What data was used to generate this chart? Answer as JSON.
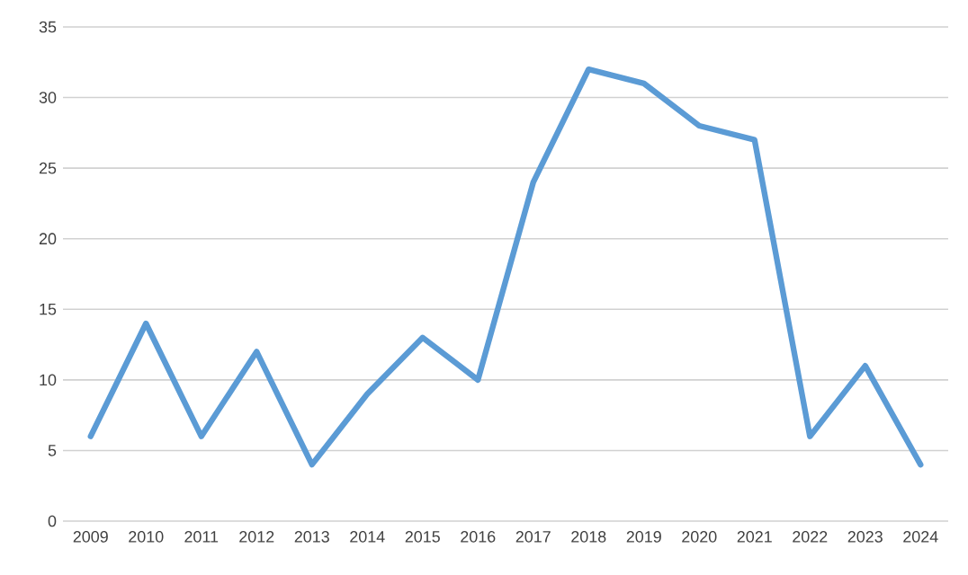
{
  "chart_data": {
    "type": "line",
    "categories": [
      "2009",
      "2010",
      "2011",
      "2012",
      "2013",
      "2014",
      "2015",
      "2016",
      "2017",
      "2018",
      "2019",
      "2020",
      "2021",
      "2022",
      "2023",
      "2024"
    ],
    "series": [
      {
        "color": "#5b9bd5",
        "values": [
          6,
          14,
          6,
          12,
          4,
          9,
          13,
          10,
          24,
          32,
          31,
          28,
          27,
          6,
          11,
          4
        ]
      }
    ],
    "ylim": [
      0,
      35
    ],
    "yticks": [
      0,
      5,
      10,
      15,
      20,
      25,
      30,
      35
    ],
    "grid": "y",
    "legend": false,
    "marker": "none",
    "line_style": "solid"
  }
}
